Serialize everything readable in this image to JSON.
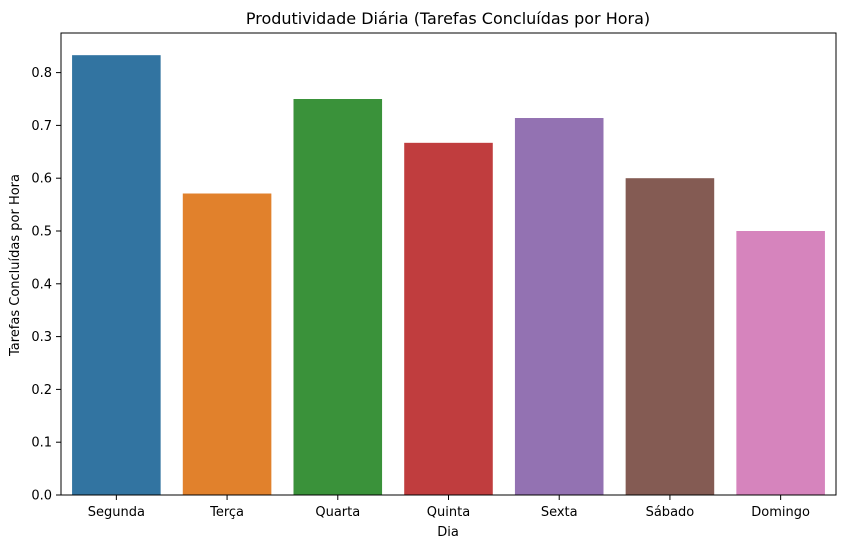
{
  "chart_data": {
    "type": "bar",
    "title": "Produtividade Diária (Tarefas Concluídas por Hora)",
    "xlabel": "Dia",
    "ylabel": "Tarefas Concluídas por Hora",
    "categories": [
      "Segunda",
      "Terça",
      "Quarta",
      "Quinta",
      "Sexta",
      "Sábado",
      "Domingo"
    ],
    "values": [
      0.833,
      0.571,
      0.75,
      0.667,
      0.714,
      0.6,
      0.5
    ],
    "colors": [
      "#3274a1",
      "#e1812c",
      "#3a923a",
      "#c03d3e",
      "#9372b2",
      "#845b53",
      "#d684bd"
    ],
    "ylim": [
      0,
      0.875
    ],
    "yticks": [
      0.0,
      0.1,
      0.2,
      0.3,
      0.4,
      0.5,
      0.6,
      0.7,
      0.8
    ],
    "ytick_labels": [
      "0.0",
      "0.1",
      "0.2",
      "0.3",
      "0.4",
      "0.5",
      "0.6",
      "0.7",
      "0.8"
    ],
    "grid": false,
    "legend": "none"
  }
}
